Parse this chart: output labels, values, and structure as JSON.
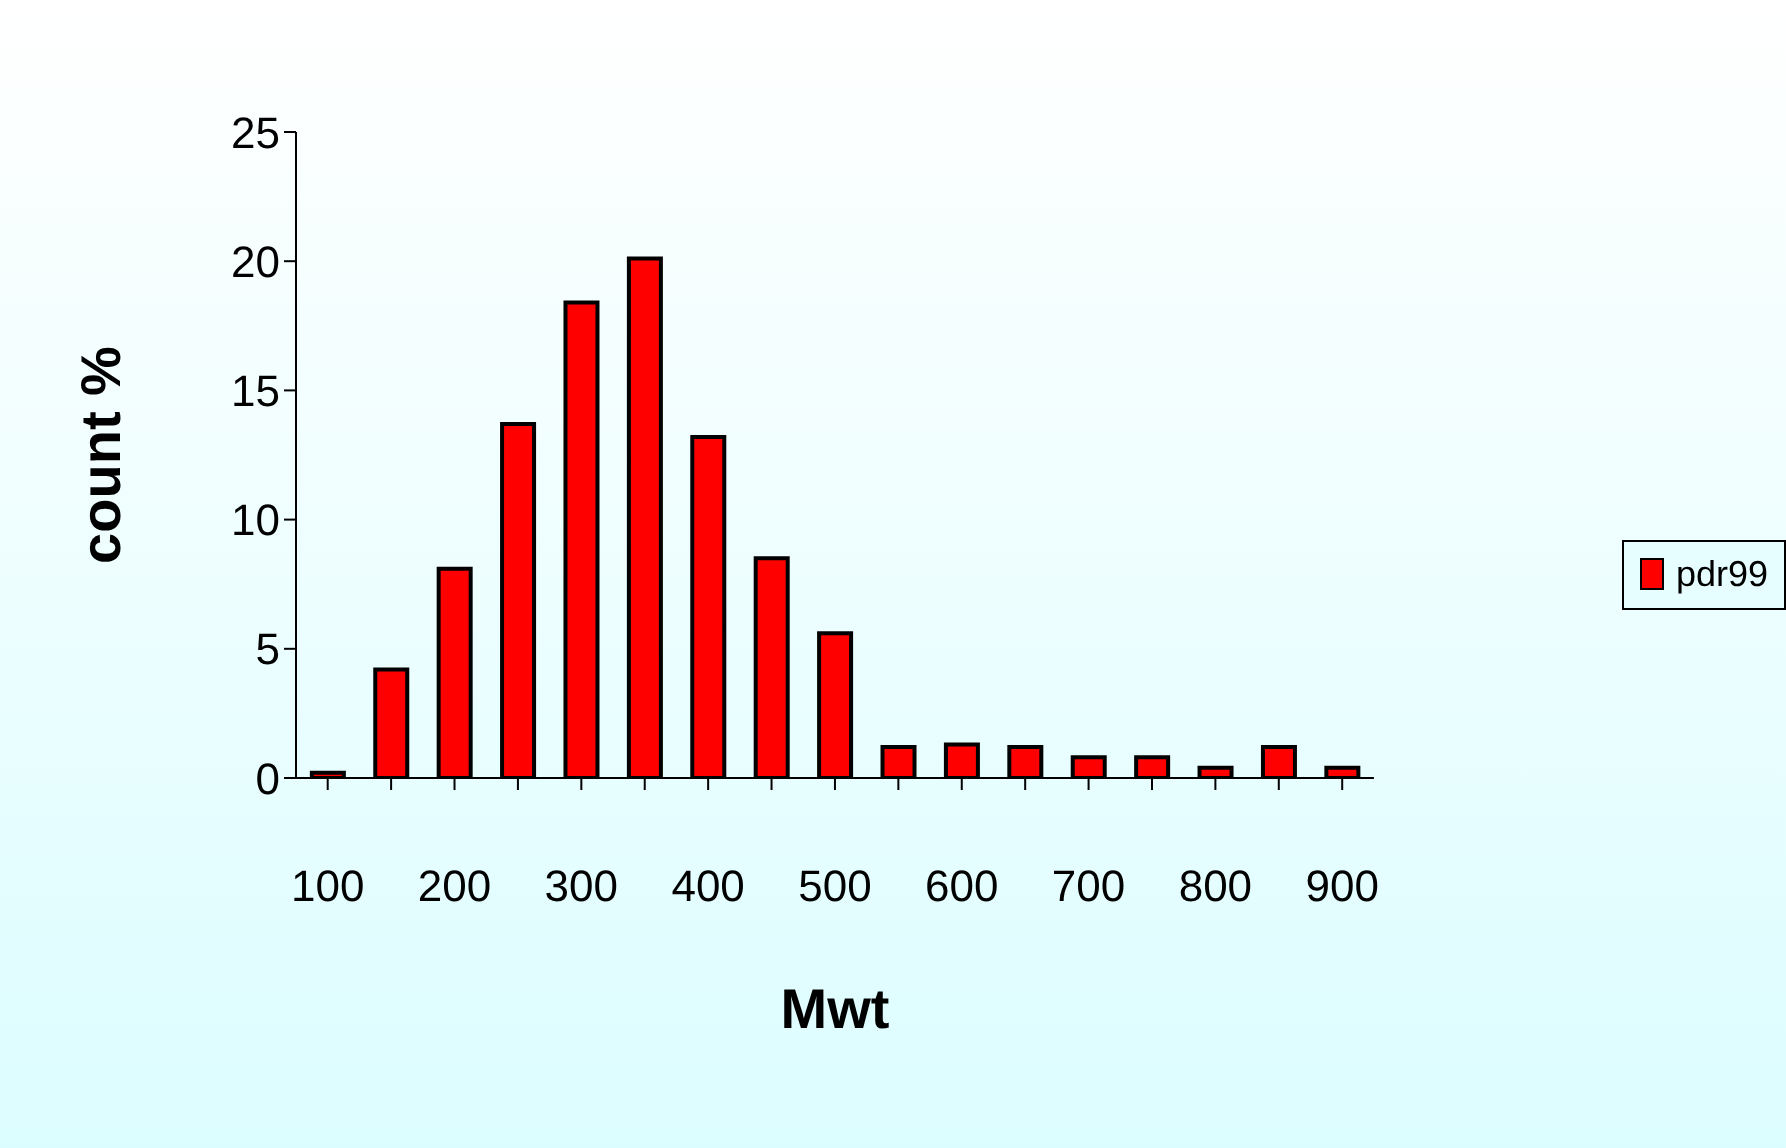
{
  "chart_data": {
    "type": "bar",
    "xlabel": "Mwt",
    "ylabel": "count %",
    "categories": [
      "100",
      null,
      "200",
      null,
      "300",
      null,
      "400",
      null,
      "500",
      null,
      "600",
      null,
      "700",
      null,
      "800",
      null,
      "900"
    ],
    "series": [
      {
        "name": "pdr99",
        "color": "#ff0000",
        "values": [
          0.2,
          4.2,
          8.1,
          13.7,
          18.4,
          20.1,
          13.2,
          8.5,
          5.6,
          1.2,
          1.3,
          1.2,
          0.8,
          0.8,
          0.4,
          1.2,
          0.4
        ]
      }
    ],
    "ylim": [
      0,
      25
    ],
    "yticks": [
      0,
      5,
      10,
      15,
      20,
      25
    ],
    "legend": "right"
  }
}
